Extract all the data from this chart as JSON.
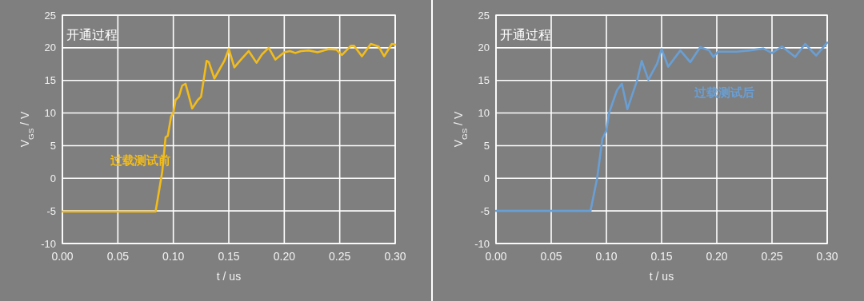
{
  "chart_data": [
    {
      "type": "line",
      "title": "开通过程",
      "xlabel": "t / us",
      "ylabel": "V$_{GS}$ / V",
      "xlim": [
        0,
        0.3
      ],
      "ylim": [
        -10,
        25
      ],
      "xticks": [
        {
          "value": 0,
          "label": "0.00"
        },
        {
          "value": 0.05,
          "label": "0.05"
        },
        {
          "value": 0.1,
          "label": "0.10"
        },
        {
          "value": 0.15,
          "label": "0.15"
        },
        {
          "value": 0.2,
          "label": "0.20"
        },
        {
          "value": 0.25,
          "label": "0.25"
        },
        {
          "value": 0.3,
          "label": "0.30"
        }
      ],
      "yticks": [
        -10,
        -5,
        0,
        5,
        10,
        15,
        20,
        25
      ],
      "grid": true,
      "series": [
        {
          "name": "过载测试前",
          "color": "#f2bc1a",
          "x": [
            0,
            0.084,
            0.09,
            0.093,
            0.095,
            0.098,
            0.1,
            0.102,
            0.105,
            0.108,
            0.111,
            0.117,
            0.122,
            0.125,
            0.13,
            0.132,
            0.137,
            0.142,
            0.146,
            0.15,
            0.155,
            0.16,
            0.168,
            0.175,
            0.18,
            0.186,
            0.192,
            0.2,
            0.205,
            0.21,
            0.215,
            0.222,
            0.23,
            0.24,
            0.247,
            0.252,
            0.26,
            0.263,
            0.27,
            0.278,
            0.285,
            0.29,
            0.297,
            0.3
          ],
          "values": [
            -5.1,
            -5.1,
            1,
            6.3,
            6.5,
            9.5,
            10,
            12,
            12.5,
            14.2,
            14.5,
            10.7,
            12,
            12.5,
            18,
            17.8,
            15.3,
            16.8,
            18,
            19.8,
            17,
            18,
            19.5,
            17.7,
            19,
            20,
            18.2,
            19.3,
            19.5,
            19.2,
            19.5,
            19.6,
            19.3,
            19.8,
            19.7,
            18.9,
            20.3,
            20.3,
            18.7,
            20.6,
            20.2,
            18.7,
            20.6,
            20.5
          ]
        }
      ]
    },
    {
      "type": "line",
      "title": "开通过程",
      "xlabel": "t / us",
      "ylabel": "V$_{GS}$ / V",
      "xlim": [
        0,
        0.3
      ],
      "ylim": [
        -10,
        25
      ],
      "xticks": [
        {
          "value": 0,
          "label": "0.00"
        },
        {
          "value": 0.05,
          "label": "0.05"
        },
        {
          "value": 0.1,
          "label": "0.10"
        },
        {
          "value": 0.15,
          "label": "0.15"
        },
        {
          "value": 0.2,
          "label": "0.20"
        },
        {
          "value": 0.25,
          "label": "0.25"
        },
        {
          "value": 0.3,
          "label": "0.30"
        }
      ],
      "yticks": [
        -10,
        -5,
        0,
        5,
        10,
        15,
        20,
        25
      ],
      "grid": true,
      "series": [
        {
          "name": "过载测试后",
          "color": "#6a9fd4",
          "x": [
            0,
            0.0856,
            0.0916,
            0.0964,
            0.1,
            0.1024,
            0.1096,
            0.114,
            0.119,
            0.128,
            0.132,
            0.138,
            0.146,
            0.15,
            0.156,
            0.167,
            0.176,
            0.185,
            0.193,
            0.197,
            0.201,
            0.218,
            0.23,
            0.242,
            0.25,
            0.259,
            0.271,
            0.28,
            0.29,
            0.3
          ],
          "values": [
            -5,
            -5,
            0,
            6.1,
            7.3,
            10,
            13.5,
            14.5,
            10.6,
            15.1,
            18,
            15.1,
            17.6,
            19.8,
            17.1,
            19.6,
            17.8,
            20.1,
            19.6,
            18.6,
            19.4,
            19.4,
            19.6,
            19.9,
            19.2,
            20.2,
            18.6,
            20.6,
            18.8,
            20.8
          ]
        }
      ]
    }
  ]
}
